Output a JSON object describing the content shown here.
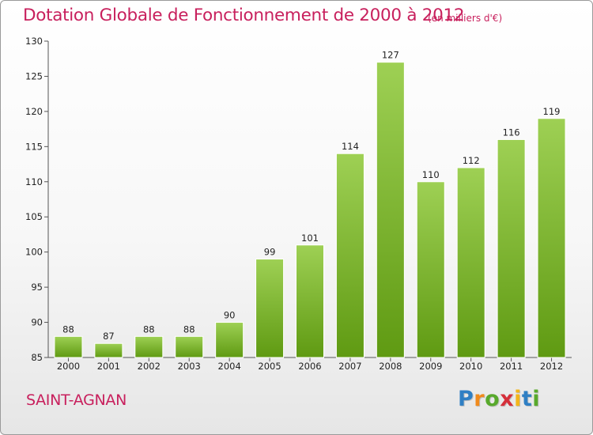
{
  "title": "Dotation Globale de Fonctionnement de 2000 à 2012",
  "subtitle": "(en milliers d'€)",
  "town": "SAINT-AGNAN",
  "logo": {
    "text": "Proxiti",
    "letters": [
      {
        "ch": "P",
        "color": "#2f7fc4"
      },
      {
        "ch": "r",
        "color": "#f08a1c"
      },
      {
        "ch": "o",
        "color": "#58a92c"
      },
      {
        "ch": "x",
        "color": "#d52f3a"
      },
      {
        "ch": "i",
        "color": "#f3b51b"
      },
      {
        "ch": "t",
        "color": "#2f7fc4"
      },
      {
        "ch": "i",
        "color": "#58a92c"
      }
    ]
  },
  "chart_data": {
    "type": "bar",
    "title": "Dotation Globale de Fonctionnement de 2000 à 2012",
    "subtitle": "(en milliers d'€)",
    "categories": [
      "2000",
      "2001",
      "2002",
      "2003",
      "2004",
      "2005",
      "2006",
      "2007",
      "2008",
      "2009",
      "2010",
      "2011",
      "2012"
    ],
    "values": [
      88,
      87,
      88,
      88,
      90,
      99,
      101,
      114,
      127,
      110,
      112,
      116,
      119
    ],
    "ylim": [
      85,
      130
    ],
    "yticks": [
      85,
      90,
      95,
      100,
      105,
      110,
      115,
      120,
      125,
      130
    ],
    "grid": false,
    "bar_color_top": "#9ed054",
    "bar_color_bottom": "#5f9a12"
  }
}
